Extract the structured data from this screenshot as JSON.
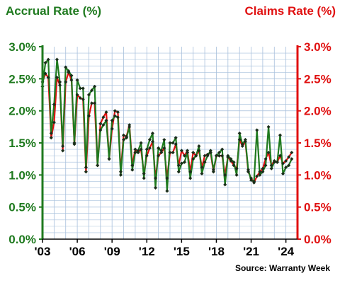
{
  "chart_data": {
    "type": "line",
    "left_axis_title": "Accrual Rate (%)",
    "right_axis_title": "Claims Rate (%)",
    "source": "Source: Warranty Week",
    "ylim": [
      0,
      3
    ],
    "xlim": [
      2003,
      2025
    ],
    "y_ticks": [
      "0.0%",
      "0.5%",
      "1.0%",
      "1.5%",
      "2.0%",
      "2.5%",
      "3.0%"
    ],
    "x_ticks": [
      {
        "value": 2003,
        "label": "'03"
      },
      {
        "value": 2006,
        "label": "'06"
      },
      {
        "value": 2009,
        "label": "'09"
      },
      {
        "value": 2012,
        "label": "'12"
      },
      {
        "value": 2015,
        "label": "'15"
      },
      {
        "value": 2018,
        "label": "'18"
      },
      {
        "value": 2021,
        "label": "'21"
      },
      {
        "value": 2024,
        "label": "'24"
      }
    ],
    "grid": true,
    "colors": {
      "accrual": "#1f7a1f",
      "claims": "#e01010",
      "grid": "#a8c0dc",
      "marker": "#1a2e1a"
    },
    "series": [
      {
        "name": "Accrual Rate (%)",
        "axis": "left",
        "values": [
          [
            2003.0,
            2.38
          ],
          [
            2003.25,
            2.75
          ],
          [
            2003.5,
            2.8
          ],
          [
            2003.75,
            1.65
          ],
          [
            2004.0,
            2.1
          ],
          [
            2004.25,
            2.8
          ],
          [
            2004.5,
            2.45
          ],
          [
            2004.75,
            1.45
          ],
          [
            2005.0,
            2.68
          ],
          [
            2005.25,
            2.62
          ],
          [
            2005.5,
            2.55
          ],
          [
            2005.75,
            1.5
          ],
          [
            2006.0,
            2.48
          ],
          [
            2006.25,
            2.35
          ],
          [
            2006.5,
            2.35
          ],
          [
            2006.75,
            1.12
          ],
          [
            2007.0,
            2.25
          ],
          [
            2007.25,
            2.32
          ],
          [
            2007.5,
            2.38
          ],
          [
            2007.75,
            1.15
          ],
          [
            2008.0,
            1.7
          ],
          [
            2008.25,
            1.78
          ],
          [
            2008.5,
            1.85
          ],
          [
            2008.75,
            1.25
          ],
          [
            2009.0,
            1.85
          ],
          [
            2009.25,
            1.92
          ],
          [
            2009.5,
            1.9
          ],
          [
            2009.75,
            1.0
          ],
          [
            2010.0,
            1.55
          ],
          [
            2010.25,
            1.58
          ],
          [
            2010.5,
            1.75
          ],
          [
            2010.75,
            1.08
          ],
          [
            2011.0,
            1.35
          ],
          [
            2011.25,
            1.38
          ],
          [
            2011.5,
            1.5
          ],
          [
            2011.75,
            0.95
          ],
          [
            2012.0,
            1.4
          ],
          [
            2012.25,
            1.55
          ],
          [
            2012.5,
            1.65
          ],
          [
            2012.75,
            0.8
          ],
          [
            2013.0,
            1.42
          ],
          [
            2013.25,
            1.38
          ],
          [
            2013.5,
            1.55
          ],
          [
            2013.75,
            0.75
          ],
          [
            2014.0,
            1.5
          ],
          [
            2014.25,
            1.5
          ],
          [
            2014.5,
            1.58
          ],
          [
            2014.75,
            1.05
          ],
          [
            2015.0,
            1.18
          ],
          [
            2015.25,
            1.2
          ],
          [
            2015.5,
            1.35
          ],
          [
            2015.75,
            0.95
          ],
          [
            2016.0,
            1.25
          ],
          [
            2016.25,
            1.3
          ],
          [
            2016.5,
            1.45
          ],
          [
            2016.75,
            1.02
          ],
          [
            2017.0,
            1.2
          ],
          [
            2017.25,
            1.3
          ],
          [
            2017.5,
            1.38
          ],
          [
            2017.75,
            1.08
          ],
          [
            2018.0,
            1.3
          ],
          [
            2018.25,
            1.35
          ],
          [
            2018.5,
            1.4
          ],
          [
            2018.75,
            0.85
          ],
          [
            2019.0,
            1.3
          ],
          [
            2019.25,
            1.25
          ],
          [
            2019.5,
            1.2
          ],
          [
            2019.75,
            1.0
          ],
          [
            2020.0,
            1.65
          ],
          [
            2020.25,
            1.48
          ],
          [
            2020.5,
            1.55
          ],
          [
            2020.75,
            1.08
          ],
          [
            2021.0,
            0.92
          ],
          [
            2021.25,
            0.9
          ],
          [
            2021.5,
            1.7
          ],
          [
            2021.75,
            1.0
          ],
          [
            2022.0,
            1.05
          ],
          [
            2022.25,
            1.15
          ],
          [
            2022.5,
            1.75
          ],
          [
            2022.75,
            1.1
          ],
          [
            2023.0,
            1.2
          ],
          [
            2023.25,
            1.2
          ],
          [
            2023.5,
            1.62
          ],
          [
            2023.75,
            1.02
          ],
          [
            2024.0,
            1.12
          ],
          [
            2024.25,
            1.15
          ],
          [
            2024.5,
            1.25
          ]
        ]
      },
      {
        "name": "Claims Rate (%)",
        "axis": "right",
        "values": [
          [
            2003.0,
            2.45
          ],
          [
            2003.25,
            2.58
          ],
          [
            2003.5,
            2.52
          ],
          [
            2003.75,
            1.58
          ],
          [
            2004.0,
            1.82
          ],
          [
            2004.25,
            2.52
          ],
          [
            2004.5,
            2.4
          ],
          [
            2004.75,
            1.38
          ],
          [
            2005.0,
            2.45
          ],
          [
            2005.25,
            2.6
          ],
          [
            2005.5,
            2.48
          ],
          [
            2005.75,
            1.48
          ],
          [
            2006.0,
            2.25
          ],
          [
            2006.25,
            2.2
          ],
          [
            2006.5,
            2.18
          ],
          [
            2006.75,
            1.05
          ],
          [
            2007.0,
            1.92
          ],
          [
            2007.25,
            2.12
          ],
          [
            2007.5,
            2.12
          ],
          [
            2007.75,
            1.15
          ],
          [
            2008.0,
            1.8
          ],
          [
            2008.25,
            1.9
          ],
          [
            2008.5,
            1.98
          ],
          [
            2008.75,
            1.25
          ],
          [
            2009.0,
            1.72
          ],
          [
            2009.25,
            2.0
          ],
          [
            2009.5,
            1.98
          ],
          [
            2009.75,
            1.05
          ],
          [
            2010.0,
            1.62
          ],
          [
            2010.25,
            1.6
          ],
          [
            2010.5,
            1.78
          ],
          [
            2010.75,
            1.15
          ],
          [
            2011.0,
            1.4
          ],
          [
            2011.25,
            1.35
          ],
          [
            2011.5,
            1.4
          ],
          [
            2011.75,
            1.02
          ],
          [
            2012.0,
            1.3
          ],
          [
            2012.25,
            1.42
          ],
          [
            2012.5,
            1.52
          ],
          [
            2012.75,
            0.95
          ],
          [
            2013.0,
            1.3
          ],
          [
            2013.25,
            1.35
          ],
          [
            2013.5,
            1.42
          ],
          [
            2013.75,
            0.95
          ],
          [
            2014.0,
            1.35
          ],
          [
            2014.25,
            1.35
          ],
          [
            2014.5,
            1.48
          ],
          [
            2014.75,
            1.15
          ],
          [
            2015.0,
            1.38
          ],
          [
            2015.25,
            1.3
          ],
          [
            2015.5,
            1.38
          ],
          [
            2015.75,
            1.05
          ],
          [
            2016.0,
            1.35
          ],
          [
            2016.25,
            1.3
          ],
          [
            2016.5,
            1.38
          ],
          [
            2016.75,
            1.12
          ],
          [
            2017.0,
            1.3
          ],
          [
            2017.25,
            1.32
          ],
          [
            2017.5,
            1.35
          ],
          [
            2017.75,
            1.05
          ],
          [
            2018.0,
            1.3
          ],
          [
            2018.25,
            1.3
          ],
          [
            2018.5,
            1.3
          ],
          [
            2018.75,
            1.0
          ],
          [
            2019.0,
            1.28
          ],
          [
            2019.25,
            1.22
          ],
          [
            2019.5,
            1.15
          ],
          [
            2019.75,
            1.1
          ],
          [
            2020.0,
            1.55
          ],
          [
            2020.25,
            1.45
          ],
          [
            2020.5,
            1.52
          ],
          [
            2020.75,
            1.05
          ],
          [
            2021.0,
            0.95
          ],
          [
            2021.25,
            0.88
          ],
          [
            2021.5,
            0.98
          ],
          [
            2021.75,
            1.05
          ],
          [
            2022.0,
            1.1
          ],
          [
            2022.25,
            1.25
          ],
          [
            2022.5,
            1.35
          ],
          [
            2022.75,
            1.15
          ],
          [
            2023.0,
            1.22
          ],
          [
            2023.25,
            1.2
          ],
          [
            2023.5,
            1.3
          ],
          [
            2023.75,
            1.18
          ],
          [
            2024.0,
            1.22
          ],
          [
            2024.25,
            1.28
          ],
          [
            2024.5,
            1.35
          ]
        ]
      }
    ]
  }
}
